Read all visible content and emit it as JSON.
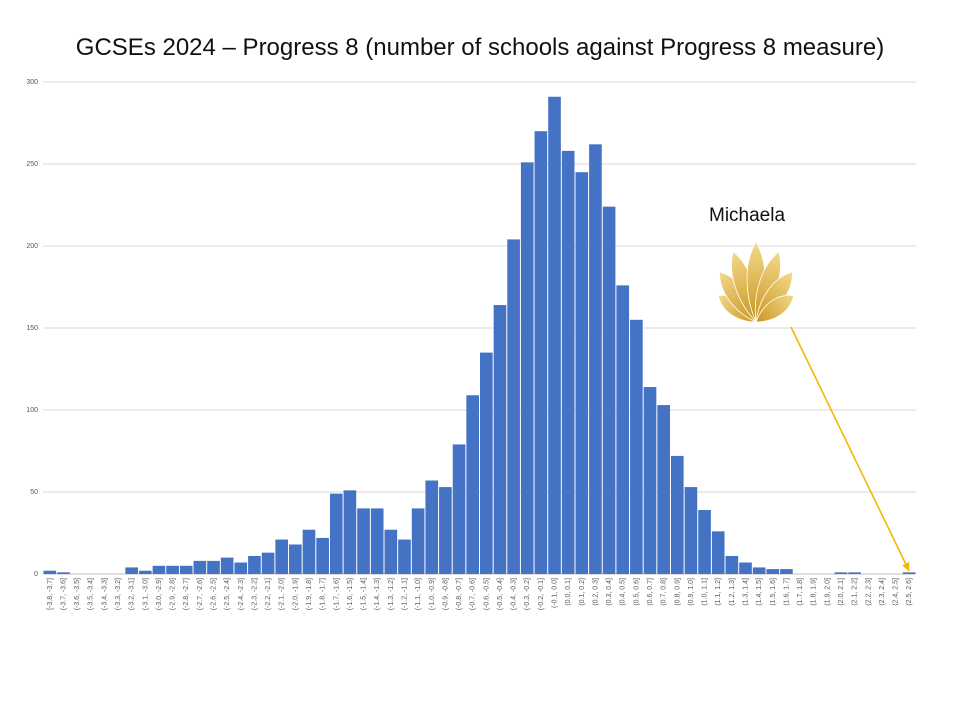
{
  "page": {
    "title": "GCSEs 2024 – Progress 8 (number of schools against Progress 8 measure)",
    "annotation": "Michaela"
  },
  "colors": {
    "bar": "#4472C4",
    "grid": "#D9D9D9",
    "axis_text": "#595959",
    "arrow": "#F5B800",
    "logo_light": "#F3D98C",
    "logo_dark": "#C9961E"
  },
  "icons": {
    "logo": "golden-fan-logo-icon",
    "arrow": "arrow-icon"
  },
  "chart_data": {
    "type": "bar",
    "title": "GCSEs 2024 – Progress 8 (number of schools against Progress 8 measure)",
    "xlabel": "",
    "ylabel": "",
    "ylim": [
      0,
      300
    ],
    "yticks": [
      0,
      50,
      100,
      150,
      200,
      250,
      300
    ],
    "grid": true,
    "categories": [
      "[-3.8, -3.7]",
      "(-3.7, -3.6]",
      "(-3.6, -3.5]",
      "(-3.5, -3.4]",
      "(-3.4, -3.3]",
      "(-3.3, -3.2]",
      "(-3.2, -3.1]",
      "(-3.1, -3.0]",
      "(-3.0, -2.9]",
      "(-2.9, -2.8]",
      "(-2.8, -2.7]",
      "(-2.7, -2.6]",
      "(-2.6, -2.5]",
      "(-2.5, -2.4]",
      "(-2.4, -2.3]",
      "(-2.3, -2.2]",
      "(-2.2, -2.1]",
      "(-2.1, -2.0]",
      "(-2.0, -1.9]",
      "(-1.9, -1.8]",
      "(-1.8, -1.7]",
      "(-1.7, -1.6]",
      "(-1.6, -1.5]",
      "(-1.5, -1.4]",
      "(-1.4, -1.3]",
      "(-1.3, -1.2]",
      "(-1.2, -1.1]",
      "(-1.1, -1.0]",
      "(-1.0, -0.9]",
      "(-0.9, -0.8]",
      "(-0.8, -0.7]",
      "(-0.7, -0.6]",
      "(-0.6, -0.5]",
      "(-0.5, -0.4]",
      "(-0.4, -0.3]",
      "(-0.3, -0.2]",
      "(-0.2, -0.1]",
      "(-0.1, 0.0]",
      "(0.0, 0.1]",
      "(0.1, 0.2]",
      "(0.2, 0.3]",
      "(0.3, 0.4]",
      "(0.4, 0.5]",
      "(0.5, 0.6]",
      "(0.6, 0.7]",
      "(0.7, 0.8]",
      "(0.8, 0.9]",
      "(0.9, 1.0]",
      "(1.0, 1.1]",
      "(1.1, 1.2]",
      "(1.2, 1.3]",
      "(1.3, 1.4]",
      "(1.4, 1.5]",
      "(1.5, 1.6]",
      "(1.6, 1.7]",
      "(1.7, 1.8]",
      "(1.8, 1.9]",
      "(1.9, 2.0]",
      "(2.0, 2.1]",
      "(2.1, 2.2]",
      "(2.2, 2.3]",
      "(2.3, 2.4]",
      "(2.4, 2.5]",
      "(2.5, 2.6]"
    ],
    "values": [
      2,
      1,
      0,
      0,
      0,
      0,
      4,
      2,
      5,
      5,
      5,
      8,
      8,
      10,
      7,
      11,
      13,
      21,
      18,
      27,
      22,
      49,
      51,
      40,
      40,
      27,
      21,
      40,
      57,
      53,
      79,
      109,
      135,
      164,
      204,
      251,
      270,
      291,
      258,
      245,
      262,
      224,
      176,
      155,
      114,
      103,
      72,
      53,
      39,
      26,
      11,
      7,
      4,
      3,
      3,
      0,
      0,
      0,
      1,
      1,
      0,
      0,
      0,
      1
    ],
    "highlight": {
      "label": "Michaela",
      "category": "(2.5, 2.6]"
    }
  }
}
